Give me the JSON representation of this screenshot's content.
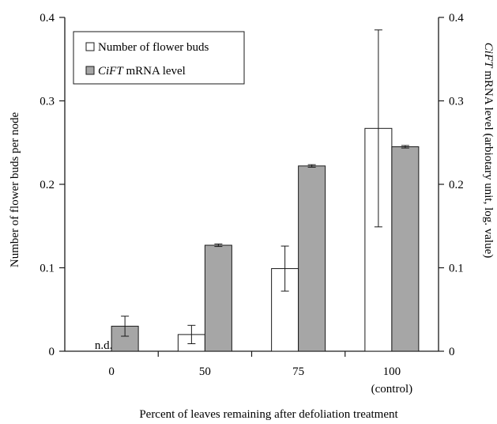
{
  "chart_data": {
    "type": "bar",
    "categories": [
      {
        "line1": "0",
        "line2": ""
      },
      {
        "line1": "50",
        "line2": ""
      },
      {
        "line1": "75",
        "line2": ""
      },
      {
        "line1": "100",
        "line2": "(control)"
      }
    ],
    "xlabel": "Percent of leaves remaining after defoliation treatment",
    "ylabel_left": "Number of flower buds per node",
    "ylabel_right_italic": "CiFT",
    "ylabel_right_rest": " mRNA level  (arbiotary unit, log. value)",
    "ylim": [
      0,
      0.4
    ],
    "yticks": [
      "0",
      "0.1",
      "0.2",
      "0.3",
      "0.4"
    ],
    "legend_position": "top-left",
    "series": [
      {
        "name": "Number of flower buds",
        "name_italic": "",
        "fill": "#ffffff",
        "values": [
          null,
          0.02,
          0.099,
          0.267
        ],
        "errors": [
          null,
          0.011,
          0.027,
          0.118
        ],
        "missing_label": "n.d."
      },
      {
        "name": " mRNA level",
        "name_italic": "CiFT",
        "fill": "#a6a6a6",
        "values": [
          0.03,
          0.127,
          0.222,
          0.245
        ],
        "errors": [
          0.012,
          0.0015,
          0.0015,
          0.0015
        ],
        "missing_label": ""
      }
    ]
  }
}
